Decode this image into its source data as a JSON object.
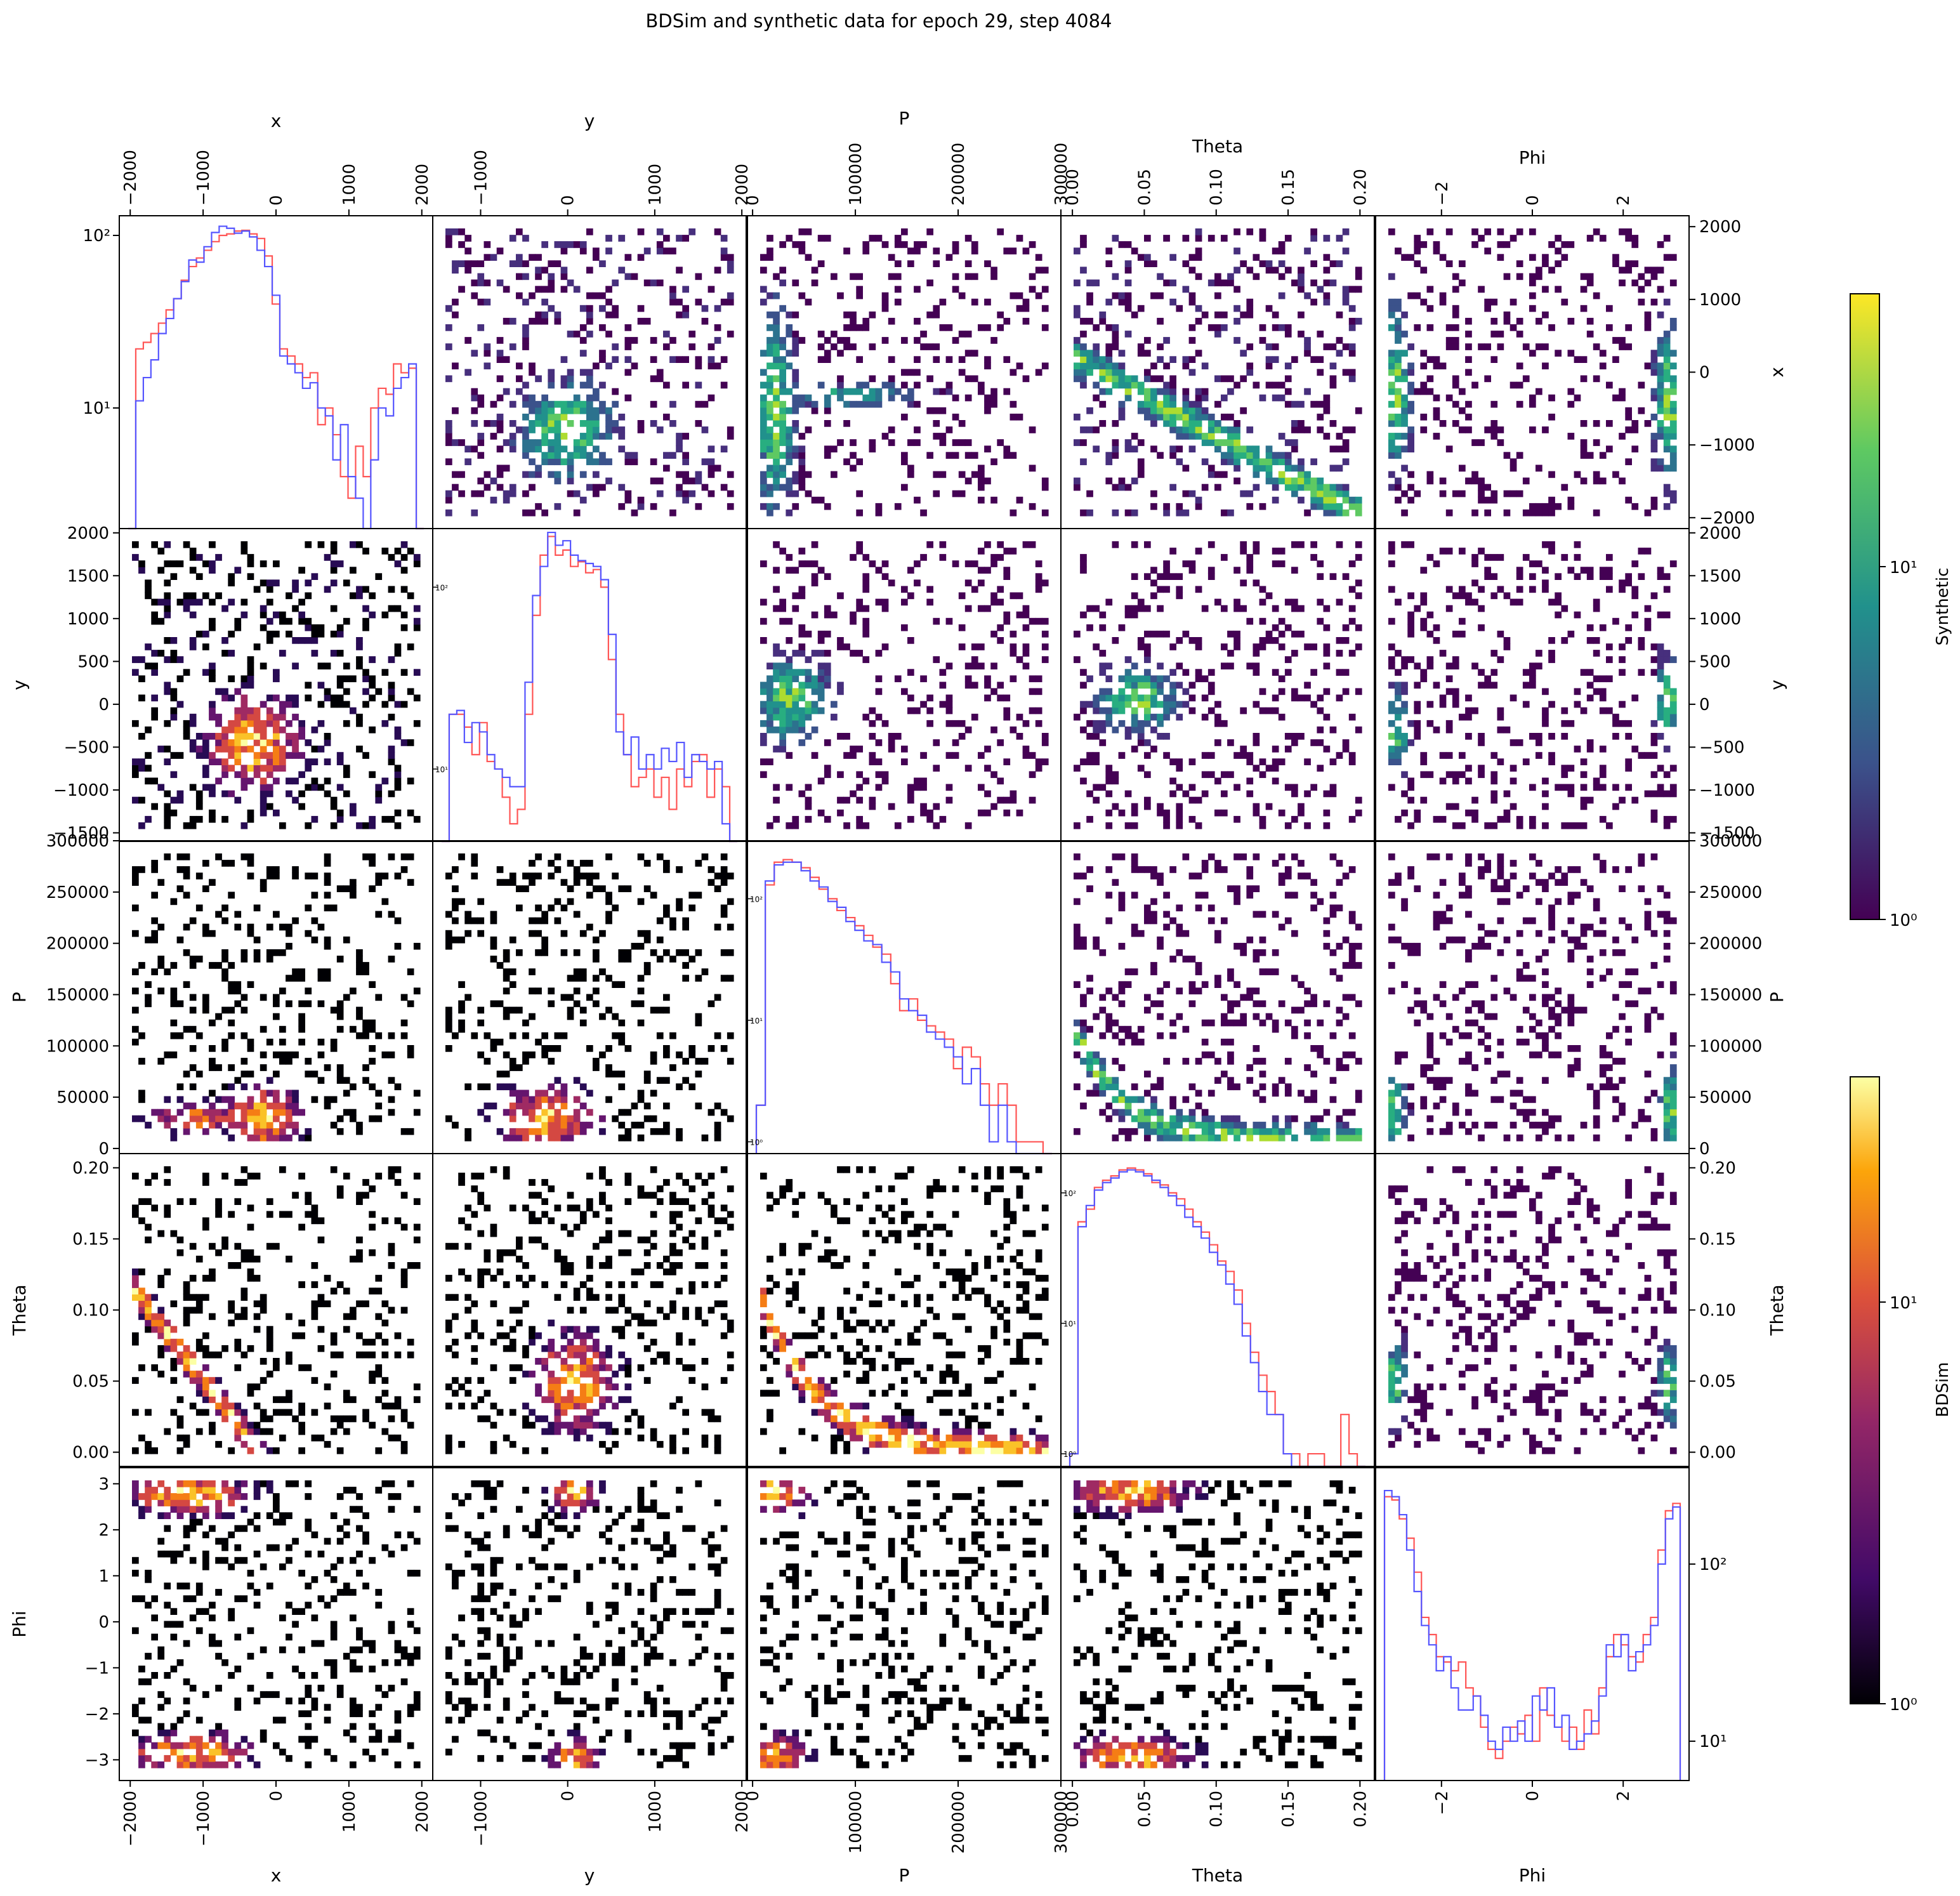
{
  "figure": {
    "title": "BDSim and synthetic data for epoch 29, step 4084",
    "variables": [
      "x",
      "y",
      "P",
      "Theta",
      "Phi"
    ],
    "legend": {
      "upper_triangle": "Synthetic",
      "lower_triangle": "BDSim",
      "histogram_colors": {
        "BDSim": "#ff5555",
        "Synthetic": "#5555ff"
      }
    }
  },
  "chart_data": {
    "type": "heatmap",
    "layout": "5x5 corner/pair plot: diagonal = 1D histograms (log y, red=BDSim, blue=Synthetic); upper triangle = Synthetic 2D histograms (viridis, log color); lower triangle = BDSim 2D histograms (inferno, log color)",
    "axes": [
      {
        "name": "x",
        "label": "x",
        "lim": [
          -2150,
          2150
        ],
        "ticks": [
          "−2000",
          "−1000",
          "0",
          "1000",
          "2000"
        ],
        "tick_values": [
          -2000,
          -1000,
          0,
          1000,
          2000
        ],
        "row_ticks": [
          "−2000",
          "−1000",
          "0",
          "1000",
          "2000"
        ],
        "row_lim": [
          -2150,
          2150
        ]
      },
      {
        "name": "y",
        "label": "y",
        "lim": [
          -1550,
          2050
        ],
        "ticks": [
          "−1000",
          "0",
          "1000",
          "2000"
        ],
        "tick_values": [
          -1000,
          0,
          1000,
          2000
        ],
        "row_ticks": [
          "−1500",
          "−1000",
          "−500",
          "0",
          "500",
          "1000",
          "1500",
          "2000"
        ],
        "row_tick_values": [
          -1500,
          -1000,
          -500,
          0,
          500,
          1000,
          1500,
          2000
        ],
        "row_lim": [
          -1600,
          2050
        ]
      },
      {
        "name": "P",
        "label": "P",
        "lim": [
          -5000,
          300000
        ],
        "ticks": [
          "0",
          "100000",
          "200000",
          "300000"
        ],
        "tick_values": [
          0,
          100000,
          200000,
          300000
        ],
        "row_ticks": [
          "0",
          "50000",
          "100000",
          "150000",
          "200000",
          "250000",
          "300000"
        ],
        "row_tick_values": [
          0,
          50000,
          100000,
          150000,
          200000,
          250000,
          300000
        ],
        "row_lim": [
          -5000,
          300000
        ]
      },
      {
        "name": "Theta",
        "label": "Theta",
        "lim": [
          -0.008,
          0.21
        ],
        "ticks": [
          "0.00",
          "0.05",
          "0.10",
          "0.15",
          "0.20"
        ],
        "tick_values": [
          0,
          0.05,
          0.1,
          0.15,
          0.2
        ],
        "row_ticks": [
          "0.00",
          "0.05",
          "0.10",
          "0.15",
          "0.20"
        ],
        "row_tick_values": [
          0,
          0.05,
          0.1,
          0.15,
          0.2
        ],
        "row_lim": [
          -0.01,
          0.21
        ]
      },
      {
        "name": "Phi",
        "label": "Phi",
        "lim": [
          -3.45,
          3.45
        ],
        "ticks": [
          "−2",
          "0",
          "2"
        ],
        "tick_values": [
          -2,
          0,
          2
        ],
        "row_ticks": [
          "−3",
          "−2",
          "−1",
          "0",
          "1",
          "2",
          "3"
        ],
        "row_tick_values": [
          -3,
          -2,
          -1,
          0,
          1,
          2,
          3
        ],
        "row_lim": [
          -3.45,
          3.35
        ]
      }
    ],
    "diagonal_histograms": [
      {
        "var": "x",
        "ylog_range": [
          2,
          130
        ],
        "yticks": [
          "10¹",
          "10²"
        ],
        "ytick_values": [
          10,
          100
        ],
        "bdsim": [
          0,
          22,
          24,
          27,
          31,
          37,
          43,
          55,
          66,
          74,
          82,
          92,
          100,
          102,
          106,
          107,
          102,
          96,
          76,
          40,
          22,
          20,
          18,
          15,
          16,
          8,
          10,
          7,
          4,
          3,
          6,
          4,
          10,
          13,
          12,
          18,
          16,
          17,
          0
        ],
        "synthetic": [
          0,
          11,
          15,
          19,
          27,
          33,
          43,
          54,
          72,
          70,
          86,
          104,
          113,
          110,
          103,
          106,
          98,
          82,
          66,
          45,
          20,
          18,
          16,
          13,
          14,
          10,
          9,
          5,
          8,
          4,
          3,
          2,
          5,
          10,
          9,
          13,
          15,
          18,
          0
        ]
      },
      {
        "var": "y",
        "ylog_range": [
          4,
          210
        ],
        "yticks": [
          "10¹",
          "10²"
        ],
        "ytick_values": [
          10,
          100
        ],
        "bdsim": [
          0,
          20,
          20,
          17,
          12,
          18,
          11,
          10,
          7,
          5,
          6,
          20,
          70,
          150,
          190,
          150,
          160,
          130,
          138,
          120,
          125,
          100,
          40,
          20,
          12,
          8,
          9,
          10,
          7,
          9,
          6,
          10,
          8,
          11,
          12,
          7,
          10,
          8,
          0
        ],
        "synthetic": [
          0,
          20,
          21,
          14,
          18,
          16,
          12,
          10,
          9,
          8,
          8,
          30,
          90,
          130,
          200,
          170,
          180,
          150,
          140,
          135,
          130,
          110,
          55,
          16,
          12,
          15,
          10,
          12,
          10,
          13,
          11,
          14,
          9,
          12,
          11,
          10,
          11,
          5,
          0
        ]
      },
      {
        "var": "P",
        "ylog_range": [
          0.8,
          300
        ],
        "yticks": [
          "10⁰",
          "10¹",
          "10²"
        ],
        "ytick_values": [
          1,
          10,
          100
        ],
        "bdsim": [
          2,
          130,
          200,
          210,
          200,
          180,
          150,
          120,
          100,
          80,
          70,
          60,
          50,
          40,
          35,
          20,
          12,
          15,
          10,
          9,
          8,
          7,
          4,
          6,
          5,
          3,
          2,
          3,
          2,
          1,
          1,
          1,
          0
        ],
        "synthetic": [
          2,
          140,
          190,
          200,
          200,
          170,
          140,
          125,
          95,
          85,
          65,
          55,
          45,
          42,
          30,
          25,
          15,
          12,
          11,
          8,
          7,
          6,
          5,
          3,
          4,
          2,
          1,
          2,
          1,
          0,
          0,
          0,
          0
        ]
      },
      {
        "var": "Theta",
        "ylog_range": [
          0.8,
          200
        ],
        "yticks": [
          "10⁰",
          "10¹",
          "10²"
        ],
        "ytick_values": [
          1,
          10,
          100
        ],
        "bdsim": [
          1,
          60,
          75,
          110,
          125,
          135,
          150,
          155,
          150,
          140,
          120,
          115,
          100,
          90,
          75,
          60,
          50,
          40,
          30,
          25,
          18,
          10,
          6,
          4,
          3,
          2,
          1,
          1,
          0,
          1,
          1,
          0,
          0,
          2,
          1,
          0
        ],
        "synthetic": [
          1,
          55,
          80,
          105,
          120,
          130,
          145,
          150,
          145,
          135,
          125,
          110,
          95,
          80,
          65,
          55,
          45,
          35,
          28,
          20,
          14,
          8,
          5,
          3,
          2,
          2,
          1,
          0,
          0,
          0,
          0,
          0,
          0,
          0,
          0,
          0
        ]
      },
      {
        "var": "Phi",
        "ylog_range": [
          6,
          350
        ],
        "yticks": [
          "10¹",
          "10²"
        ],
        "ytick_values": [
          10,
          100
        ],
        "bdsim": [
          240,
          230,
          180,
          140,
          90,
          50,
          40,
          30,
          28,
          25,
          28,
          20,
          18,
          12,
          9,
          8,
          10,
          12,
          11,
          14,
          10,
          20,
          14,
          12,
          10,
          12,
          9,
          15,
          11,
          20,
          30,
          40,
          35,
          30,
          28,
          40,
          50,
          120,
          200,
          220
        ],
        "synthetic": [
          260,
          240,
          190,
          120,
          70,
          45,
          35,
          25,
          30,
          20,
          15,
          15,
          18,
          14,
          10,
          9,
          12,
          10,
          13,
          10,
          18,
          15,
          20,
          12,
          14,
          9,
          10,
          11,
          13,
          18,
          35,
          30,
          40,
          25,
          32,
          35,
          45,
          100,
          180,
          210
        ]
      }
    ],
    "colorbars": [
      {
        "label": "Synthetic",
        "colormap": "viridis",
        "scale": "log",
        "range": [
          1,
          90
        ],
        "ticks": [
          "10⁰",
          "10¹"
        ],
        "tick_values": [
          1,
          10
        ]
      },
      {
        "label": "BDSim",
        "colormap": "inferno",
        "scale": "log",
        "range": [
          1,
          60
        ],
        "ticks": [
          "10⁰",
          "10¹"
        ],
        "tick_values": [
          1,
          10
        ]
      }
    ]
  }
}
